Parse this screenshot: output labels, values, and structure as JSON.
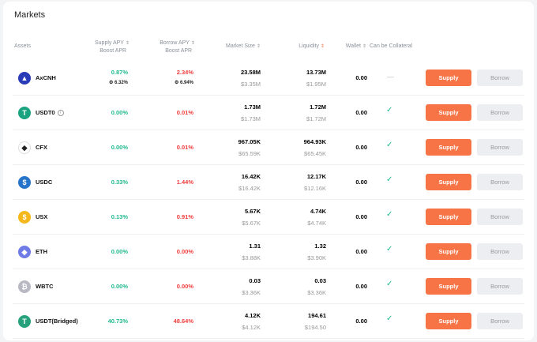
{
  "title": "Markets",
  "headers": {
    "assets": "Assets",
    "supply1": "Supply APY",
    "supply2": "Boost APR",
    "borrow1": "Borrow APY",
    "borrow2": "Boost APR",
    "market": "Market Size",
    "liquidity": "Liquidity",
    "wallet": "Wallet",
    "collateral": "Can be Collateral"
  },
  "buttons": {
    "supply": "Supply",
    "borrow": "Borrow"
  },
  "rows": [
    {
      "name": "AxCNH",
      "color": "#2a3bb7",
      "glyph": "▲",
      "supply": "0.87%",
      "supply_boost": "6.32%",
      "borrow": "2.34%",
      "borrow_boost": "6.94%",
      "market": "23.58M",
      "market_usd": "$3.35M",
      "liq": "13.73M",
      "liq_usd": "$1.95M",
      "wallet": "0.00",
      "collateral": false
    },
    {
      "name": "USDT0",
      "color": "#1ba37f",
      "glyph": "T",
      "info": "i",
      "supply": "0.00%",
      "borrow": "0.01%",
      "market": "1.73M",
      "market_usd": "$1.73M",
      "liq": "1.72M",
      "liq_usd": "$1.72M",
      "wallet": "0.00",
      "collateral": true
    },
    {
      "name": "CFX",
      "color": "#ffffff",
      "glyph": "◆",
      "supply": "0.00%",
      "borrow": "0.01%",
      "market": "967.05K",
      "market_usd": "$65.59K",
      "liq": "964.93K",
      "liq_usd": "$65.45K",
      "wallet": "0.00",
      "collateral": true
    },
    {
      "name": "USDC",
      "color": "#2775ca",
      "glyph": "$",
      "supply": "0.33%",
      "borrow": "1.44%",
      "market": "16.42K",
      "market_usd": "$16.42K",
      "liq": "12.17K",
      "liq_usd": "$12.16K",
      "wallet": "0.00",
      "collateral": true
    },
    {
      "name": "USX",
      "color": "#f5b81b",
      "glyph": "$",
      "supply": "0.13%",
      "borrow": "0.91%",
      "market": "5.67K",
      "market_usd": "$5.67K",
      "liq": "4.74K",
      "liq_usd": "$4.74K",
      "wallet": "0.00",
      "collateral": true
    },
    {
      "name": "ETH",
      "color": "#6f7ce6",
      "glyph": "◆",
      "supply": "0.00%",
      "borrow": "0.00%",
      "market": "1.31",
      "market_usd": "$3.88K",
      "liq": "1.32",
      "liq_usd": "$3.90K",
      "wallet": "0.00",
      "collateral": true
    },
    {
      "name": "WBTC",
      "color": "#b9b9c4",
      "glyph": "₿",
      "supply": "0.00%",
      "borrow": "0.00%",
      "market": "0.03",
      "market_usd": "$3.36K",
      "liq": "0.03",
      "liq_usd": "$3.36K",
      "wallet": "0.00",
      "collateral": true
    },
    {
      "name": "USDT(Bridged)",
      "color": "#26a17b",
      "glyph": "T",
      "supply": "40.73%",
      "borrow": "48.64%",
      "market": "4.12K",
      "market_usd": "$4.12K",
      "liq": "194.61",
      "liq_usd": "$194.50",
      "wallet": "0.00",
      "collateral": true
    }
  ]
}
